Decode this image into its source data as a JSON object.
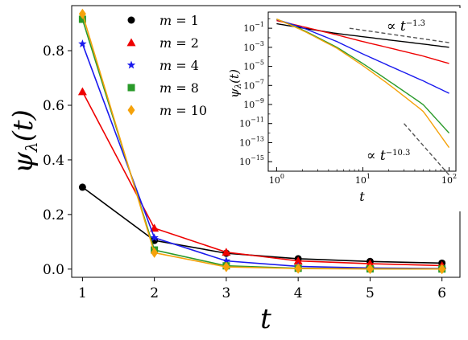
{
  "chart_data": [
    {
      "type": "line",
      "xlabel": "t",
      "ylabel": "ψλ(t)",
      "xlim": [
        0.85,
        6.25
      ],
      "ylim": [
        -0.03,
        0.965
      ],
      "x_ticks": [
        1,
        2,
        3,
        4,
        5,
        6
      ],
      "y_ticks": [
        0.0,
        0.2,
        0.4,
        0.6,
        0.8
      ],
      "x_tick_labels": [
        "1",
        "2",
        "3",
        "4",
        "5",
        "6"
      ],
      "y_tick_labels": [
        "0.0",
        "0.2",
        "0.4",
        "0.6",
        "0.8"
      ],
      "x": [
        1,
        2,
        3,
        4,
        5,
        6
      ],
      "legend_position": "top-left",
      "series": [
        {
          "name": "m = 1",
          "color": "#000000",
          "marker": "circle",
          "values": [
            0.3,
            0.105,
            0.058,
            0.038,
            0.028,
            0.022
          ]
        },
        {
          "name": "m = 2",
          "color": "#ee0000",
          "marker": "triangle",
          "values": [
            0.65,
            0.15,
            0.062,
            0.03,
            0.02,
            0.013
          ]
        },
        {
          "name": "m = 4",
          "color": "#1a1aee",
          "marker": "star",
          "values": [
            0.825,
            0.115,
            0.03,
            0.01,
            0.004,
            0.002
          ]
        },
        {
          "name": "m = 8",
          "color": "#2a9a2a",
          "marker": "square",
          "values": [
            0.915,
            0.07,
            0.012,
            0.003,
            0.001,
            0.0005
          ]
        },
        {
          "name": "m = 10",
          "color": "#f5a20a",
          "marker": "diamond",
          "values": [
            0.935,
            0.06,
            0.008,
            0.002,
            0.0008,
            0.0003
          ]
        }
      ]
    },
    {
      "type": "line",
      "xlabel": "t",
      "ylabel": "ψλ(t)",
      "xscale": "log",
      "yscale": "log",
      "xlim": [
        0.8,
        120
      ],
      "ylim": [
        1e-16,
        5
      ],
      "x_ticks": [
        1,
        10,
        100
      ],
      "y_ticks": [
        0.1,
        0.001,
        1e-05,
        1e-07,
        1e-09,
        1e-11,
        1e-13,
        1e-15
      ],
      "x_tick_labels": [
        {
          "base": "10",
          "exp": "0"
        },
        {
          "base": "10",
          "exp": "1"
        },
        {
          "base": "10",
          "exp": "2"
        }
      ],
      "y_tick_labels": [
        {
          "base": "10",
          "exp": "−1"
        },
        {
          "base": "10",
          "exp": "−3"
        },
        {
          "base": "10",
          "exp": "−5"
        },
        {
          "base": "10",
          "exp": "−7"
        },
        {
          "base": "10",
          "exp": "−9"
        },
        {
          "base": "10",
          "exp": "−11"
        },
        {
          "base": "10",
          "exp": "−13"
        },
        {
          "base": "10",
          "exp": "−15"
        }
      ],
      "series": [
        {
          "name": "m = 1",
          "color": "#000000",
          "x": [
            1,
            2,
            5,
            10,
            20,
            50,
            100
          ],
          "values": [
            0.3,
            0.105,
            0.028,
            0.013,
            0.006,
            0.0022,
            0.001
          ]
        },
        {
          "name": "m = 2",
          "color": "#ee0000",
          "x": [
            1,
            2,
            5,
            10,
            20,
            50,
            100
          ],
          "values": [
            0.65,
            0.15,
            0.02,
            0.004,
            0.0009,
            0.00012,
            2e-05
          ]
        },
        {
          "name": "m = 4",
          "color": "#1a1aee",
          "x": [
            1,
            2,
            5,
            10,
            20,
            50,
            100
          ],
          "values": [
            0.825,
            0.115,
            0.004,
            0.0002,
            1.2e-05,
            3e-07,
            1.5e-08
          ]
        },
        {
          "name": "m = 8",
          "color": "#2a9a2a",
          "x": [
            1,
            2,
            5,
            10,
            20,
            50,
            100
          ],
          "values": [
            0.915,
            0.07,
            0.001,
            2e-05,
            3e-07,
            1e-09,
            1e-12
          ]
        },
        {
          "name": "m = 10",
          "color": "#f5a20a",
          "x": [
            1,
            2,
            5,
            10,
            20,
            50,
            100
          ],
          "values": [
            0.935,
            0.06,
            0.0008,
            1.2e-05,
            1.3e-07,
            2e-10,
            3e-14
          ]
        }
      ],
      "reference_lines": [
        {
          "label_base": "∝ t",
          "label_exp": "−1.3",
          "exponent": -1.3,
          "x": [
            7,
            100
          ],
          "values": [
            0.1,
            0.0031
          ]
        },
        {
          "label_base": "∝ t",
          "label_exp": "−10.3",
          "exponent": -10.3,
          "x": [
            30,
            100
          ],
          "values": [
            1e-11,
            4e-17
          ]
        }
      ]
    }
  ]
}
